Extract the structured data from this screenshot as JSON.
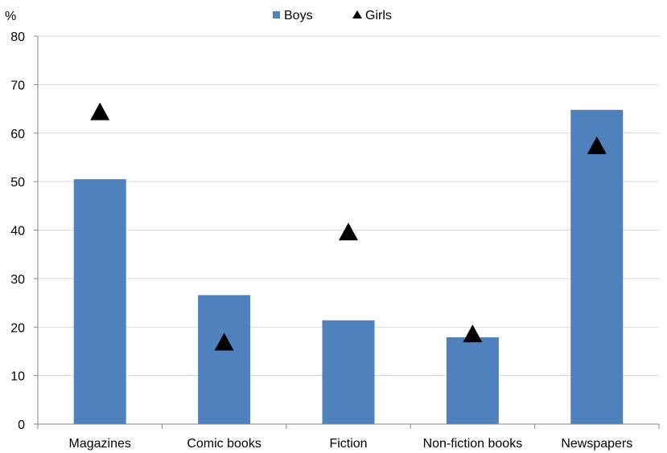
{
  "chart_data": {
    "type": "bar",
    "y_unit_label": "%",
    "categories": [
      "Magazines",
      "Comic books",
      "Fiction",
      "Non-fiction books",
      "Newspapers"
    ],
    "series": [
      {
        "name": "Boys",
        "kind": "bar",
        "color": "#4F81BD",
        "values": [
          50.5,
          26.6,
          21.4,
          17.9,
          64.8
        ]
      },
      {
        "name": "Girls",
        "kind": "marker",
        "marker": "triangle",
        "color": "#000000",
        "values": [
          64.5,
          17.0,
          39.7,
          18.7,
          57.5
        ]
      }
    ],
    "ylim": [
      0,
      80
    ],
    "yticks": [
      0,
      10,
      20,
      30,
      40,
      50,
      60,
      70,
      80
    ],
    "grid": true,
    "legend_position": "top-center"
  }
}
